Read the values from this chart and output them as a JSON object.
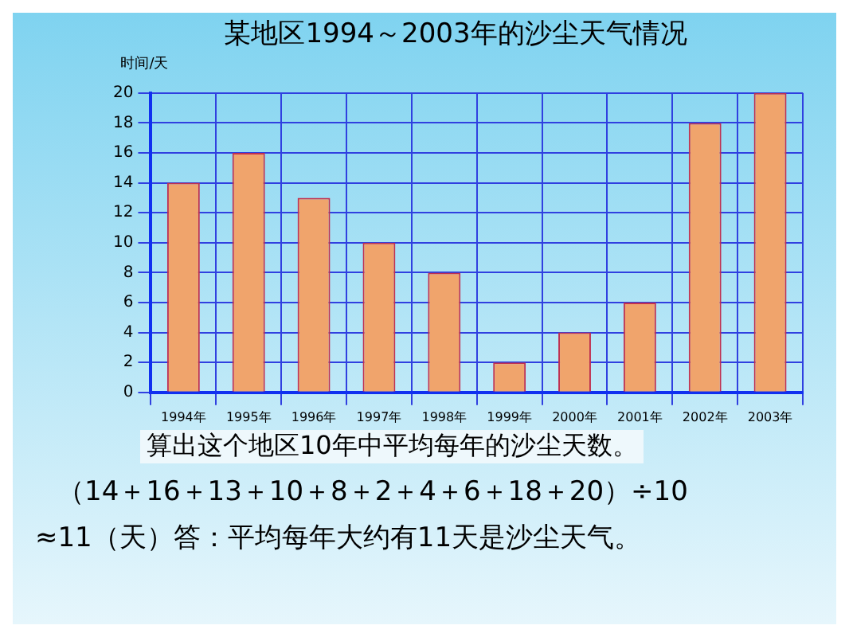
{
  "chart_data": {
    "type": "bar",
    "title": "某地区1994～2003年的沙尘天气情况",
    "ylabel": "时间/天",
    "categories": [
      "1994年",
      "1995年",
      "1996年",
      "1997年",
      "1998年",
      "1999年",
      "2000年",
      "2001年",
      "2002年",
      "2003年"
    ],
    "values": [
      14,
      16,
      13,
      10,
      8,
      2,
      4,
      6,
      18,
      20
    ],
    "color": "#f0a46c",
    "ylim": [
      0,
      20
    ],
    "yticks": [
      0,
      2,
      4,
      6,
      8,
      10,
      12,
      14,
      16,
      18,
      20
    ],
    "grid": true,
    "annotations": [
      "算出这个地区10年中平均每年的沙尘天数。",
      "（14＋16＋13＋10＋8＋2＋4＋6＋18＋20）÷10",
      "≈11（天）答：平均每年大约有11天是沙尘天气。"
    ]
  }
}
